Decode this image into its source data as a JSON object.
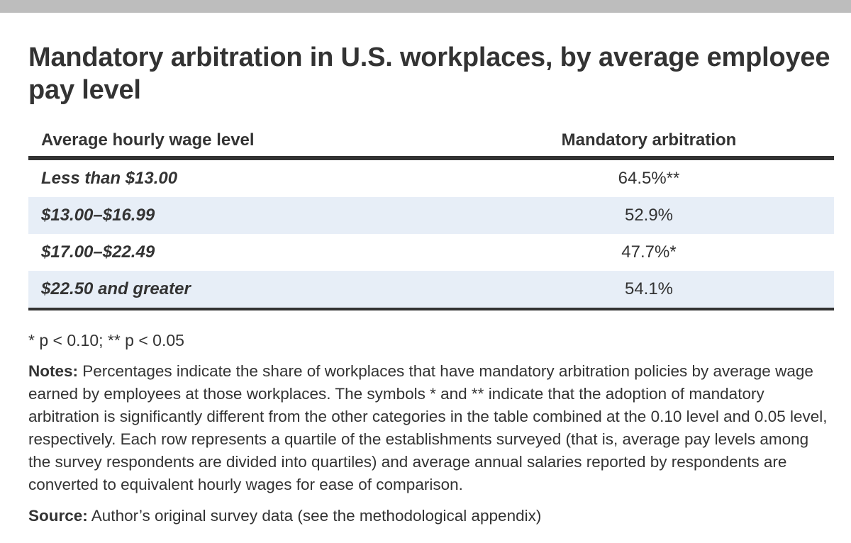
{
  "title": "Mandatory arbitration in U.S. workplaces, by average employee pay level",
  "table": {
    "headers": [
      "Average hourly wage level",
      "Mandatory arbitration"
    ],
    "rows": [
      {
        "wage": "Less than $13.00",
        "arbitration": "64.5%**"
      },
      {
        "wage": "$13.00–$16.99",
        "arbitration": "52.9%"
      },
      {
        "wage": "$17.00–$22.49",
        "arbitration": "47.7%*"
      },
      {
        "wage": "$22.50 and greater",
        "arbitration": "54.1%"
      }
    ]
  },
  "significance": "* p < 0.10; ** p < 0.05",
  "notes": {
    "label": "Notes:",
    "text": " Percentages indicate the share of workplaces that have mandatory arbitration policies by average wage earned by employees at those workplaces. The symbols * and ** indicate that the adoption of mandatory arbitration is significantly different from the other categories in the table combined at the 0.10 level and 0.05 level, respectively. Each row represents a quartile of the establishments surveyed (that is, average pay levels among the survey respondents are divided into quartiles) and average annual salaries reported by respondents are converted to equivalent hourly wages for ease of comparison."
  },
  "source": {
    "label": "Source:",
    "text": " Author’s original survey data (see the methodological appendix)"
  },
  "colors": {
    "shaded_row": "#e7eef7",
    "text": "#333333",
    "rule": "#333333",
    "top_bar": "#bdbdbd"
  }
}
